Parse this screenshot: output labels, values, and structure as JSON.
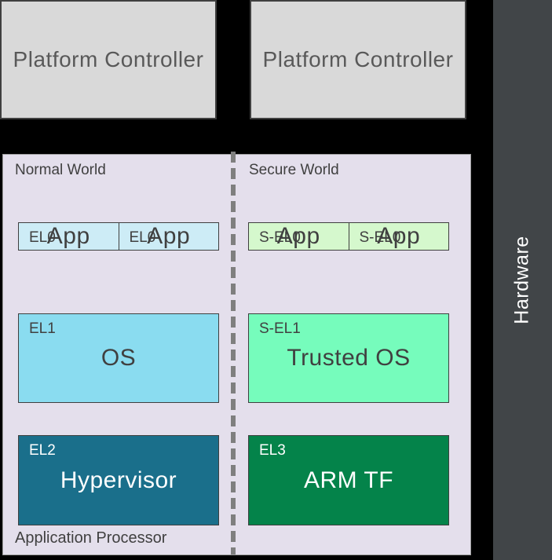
{
  "diagram": {
    "platform_controllers": [
      {
        "label": "Platform Controller"
      },
      {
        "label": "Platform Controller"
      }
    ],
    "hardware_label": "Hardware",
    "normal_world": {
      "label": "Normal World",
      "el0_boxes": [
        {
          "level": "EL0",
          "name": "App"
        },
        {
          "level": "EL0",
          "name": "App"
        }
      ],
      "el1": {
        "level": "EL1",
        "name": "OS"
      },
      "el2": {
        "level": "EL2",
        "name": "Hypervisor"
      }
    },
    "secure_world": {
      "label": "Secure World",
      "el0_boxes": [
        {
          "level": "S-EL0",
          "name": "App"
        },
        {
          "level": "S-EL0",
          "name": "App"
        }
      ],
      "el1": {
        "level": "S-EL1",
        "name": "Trusted OS"
      },
      "el3": {
        "level": "EL3",
        "name": "ARM TF"
      }
    },
    "application_processor_label": "Application Processor"
  },
  "colors": {
    "background": "#000000",
    "platform_controller_fill": "#d9d9d9",
    "platform_controller_text": "#595959",
    "hardware_fill": "#414548",
    "panel_fill": "#e4dfec",
    "el0_fill": "#cdecf6",
    "el1_fill": "#8adcf0",
    "el2_fill": "#1a6f8b",
    "sel0_fill": "#d5f8cd",
    "sel1_fill": "#76fcbc",
    "el3_fill": "#04834a",
    "divider": "#7f7f7f",
    "box_border": "#3f3f3f",
    "text_dark": "#404040",
    "text_light": "#ffffff"
  }
}
